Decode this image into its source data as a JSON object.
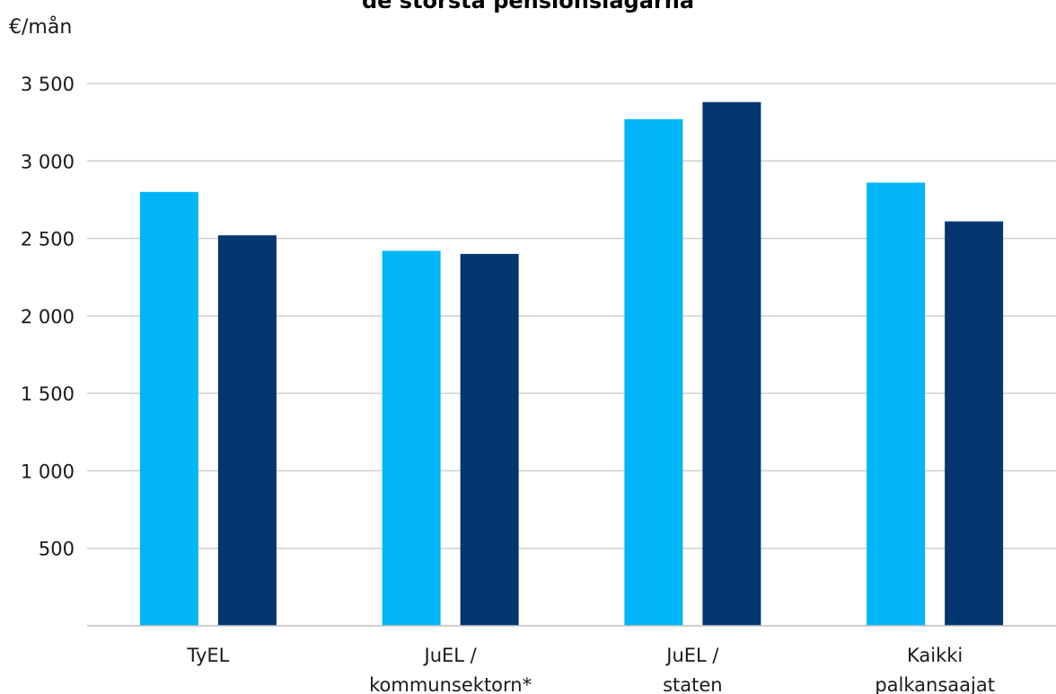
{
  "chart_data": {
    "type": "bar",
    "title": "de största pensionslagarna",
    "ylabel": "€/mån",
    "xlabel": "",
    "categories": [
      [
        "TyEL"
      ],
      [
        "JuEL /",
        "kommunsektorn*"
      ],
      [
        "JuEL /",
        "staten"
      ],
      [
        "Kaikki",
        "palkansaajat"
      ]
    ],
    "series": [
      {
        "color": "#00b6f6",
        "values": [
          2800,
          2420,
          3270,
          2860
        ]
      },
      {
        "color": "#04376f",
        "values": [
          2520,
          2400,
          3380,
          2610
        ]
      }
    ],
    "ylim": [
      0,
      3500
    ],
    "yticks": [
      {
        "value": 500,
        "label": "500"
      },
      {
        "value": 1000,
        "label": "1 000"
      },
      {
        "value": 1500,
        "label": "1 500"
      },
      {
        "value": 2000,
        "label": "2 000"
      },
      {
        "value": 2500,
        "label": "2 500"
      },
      {
        "value": 3000,
        "label": "3 000"
      },
      {
        "value": 3500,
        "label": "3 500"
      }
    ],
    "grid": true,
    "legend": "none"
  }
}
